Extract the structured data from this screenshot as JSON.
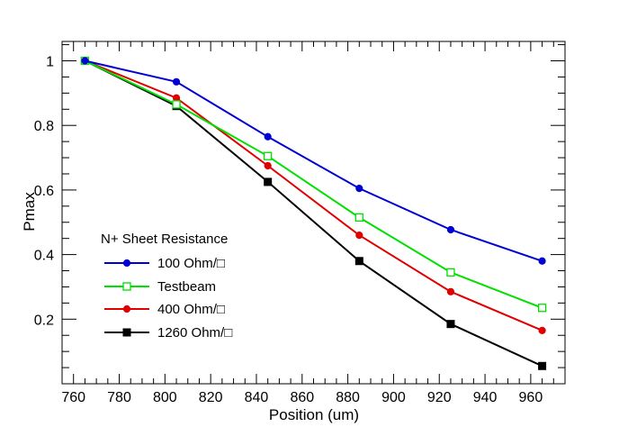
{
  "chart_data": {
    "type": "line",
    "title": "",
    "xlabel": "Position (um)",
    "ylabel": "Pmax",
    "xlim": [
      755,
      975
    ],
    "ylim": [
      0,
      1.06
    ],
    "x_ticks": [
      760,
      780,
      800,
      820,
      840,
      860,
      880,
      900,
      920,
      940,
      960
    ],
    "y_ticks": [
      0.2,
      0.4,
      0.6,
      0.8,
      1
    ],
    "y_tick_labels": [
      "0.2",
      "0.4",
      "0.6",
      "0.8",
      "1"
    ],
    "x": [
      765,
      805,
      845,
      885,
      925,
      965
    ],
    "legend_title": "N+ Sheet Resistance",
    "series": [
      {
        "name": "100 Ohm/□",
        "color": "#0000d4",
        "marker": "circle",
        "values": [
          1.0,
          0.935,
          0.765,
          0.605,
          0.477,
          0.38
        ]
      },
      {
        "name": "Testbeam",
        "color": "#00e000",
        "marker": "open-square",
        "values": [
          1.0,
          0.865,
          0.705,
          0.515,
          0.345,
          0.235
        ]
      },
      {
        "name": "400 Ohm/□",
        "color": "#e00000",
        "marker": "circle",
        "values": [
          1.0,
          0.885,
          0.675,
          0.46,
          0.285,
          0.165
        ]
      },
      {
        "name": "1260 Ohm/□",
        "color": "#000000",
        "marker": "square",
        "values": [
          1.0,
          0.86,
          0.625,
          0.38,
          0.185,
          0.055
        ]
      }
    ]
  }
}
